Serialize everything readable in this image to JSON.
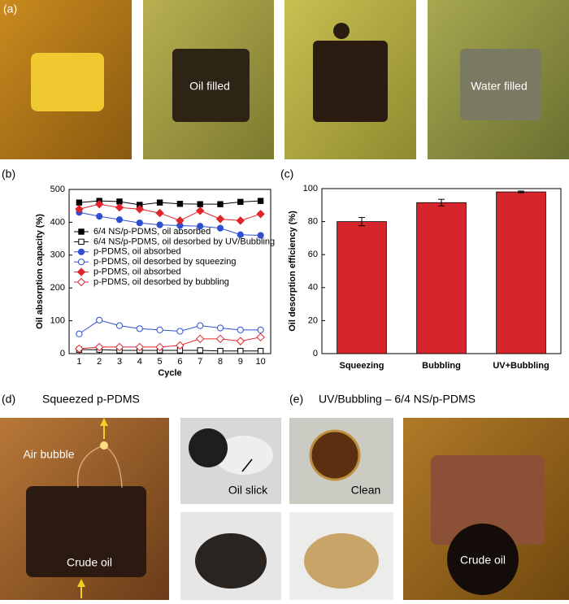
{
  "figure": {
    "panel_a": {
      "label": "(a)",
      "oil_filled": "Oil filled",
      "water_filled": "Water filled"
    },
    "panel_b_label": "(b)",
    "panel_c_label": "(c)",
    "panel_d": {
      "label": "(d)",
      "title": "Squeezed p-PDMS",
      "air_bubble": "Air bubble",
      "crude_oil": "Crude oil",
      "oil_slick": "Oil slick"
    },
    "panel_e": {
      "label": "(e)",
      "title": "UV/Bubbling  – 6/4 NS/p-PDMS",
      "clean": "Clean",
      "crude_oil": "Crude oil"
    }
  },
  "chart_data": [
    {
      "type": "line",
      "xlabel": "Cycle",
      "ylabel": "Oil absorption capacity (%)",
      "x": [
        1,
        2,
        3,
        4,
        5,
        6,
        7,
        8,
        9,
        10
      ],
      "xlim": [
        0.5,
        10.5
      ],
      "xticks": [
        1,
        2,
        3,
        4,
        5,
        6,
        7,
        8,
        9,
        10
      ],
      "ylim": [
        0,
        500
      ],
      "yticks": [
        0,
        100,
        200,
        300,
        400,
        500
      ],
      "series": [
        {
          "name": "6/4 NS/p-PDMS, oil absorbed",
          "color": "#000000",
          "marker": "square",
          "filled": true,
          "values": [
            460,
            465,
            463,
            453,
            460,
            456,
            455,
            455,
            462,
            465
          ]
        },
        {
          "name": "6/4 NS/p-PDMS, oil desorbed by UV/Bubbling",
          "color": "#000000",
          "marker": "square",
          "filled": false,
          "values": [
            12,
            12,
            10,
            10,
            10,
            10,
            10,
            8,
            8,
            8
          ]
        },
        {
          "name": "p-PDMS, oil absorbed",
          "color": "#2f4fd0",
          "marker": "circle",
          "filled": true,
          "values": [
            430,
            418,
            408,
            398,
            392,
            390,
            388,
            382,
            362,
            360
          ]
        },
        {
          "name": "p-PDMS, oil desorbed by squeezing",
          "color": "#2f4fd0",
          "marker": "circle",
          "filled": false,
          "values": [
            60,
            102,
            85,
            76,
            72,
            68,
            85,
            78,
            72,
            72
          ]
        },
        {
          "name": "p-PDMS, oil absorbed",
          "color": "#e0262b",
          "marker": "diamond",
          "filled": true,
          "values": [
            440,
            455,
            445,
            440,
            428,
            405,
            435,
            410,
            405,
            425
          ]
        },
        {
          "name": "p-PDMS, oil desorbed by bubbling",
          "color": "#e0262b",
          "marker": "diamond",
          "filled": false,
          "values": [
            15,
            20,
            20,
            20,
            20,
            25,
            45,
            45,
            38,
            50
          ]
        }
      ]
    },
    {
      "type": "bar",
      "ylabel": "Oil desorption efficiency (%)",
      "categories": [
        "Squeezing",
        "Bubbling",
        "UV+Bubbling"
      ],
      "values": [
        80,
        91.5,
        98
      ],
      "errors": [
        2.5,
        2,
        0.5
      ],
      "color": "#d7262b",
      "ylim": [
        0,
        100
      ],
      "yticks": [
        0,
        20,
        40,
        60,
        80,
        100
      ]
    }
  ]
}
